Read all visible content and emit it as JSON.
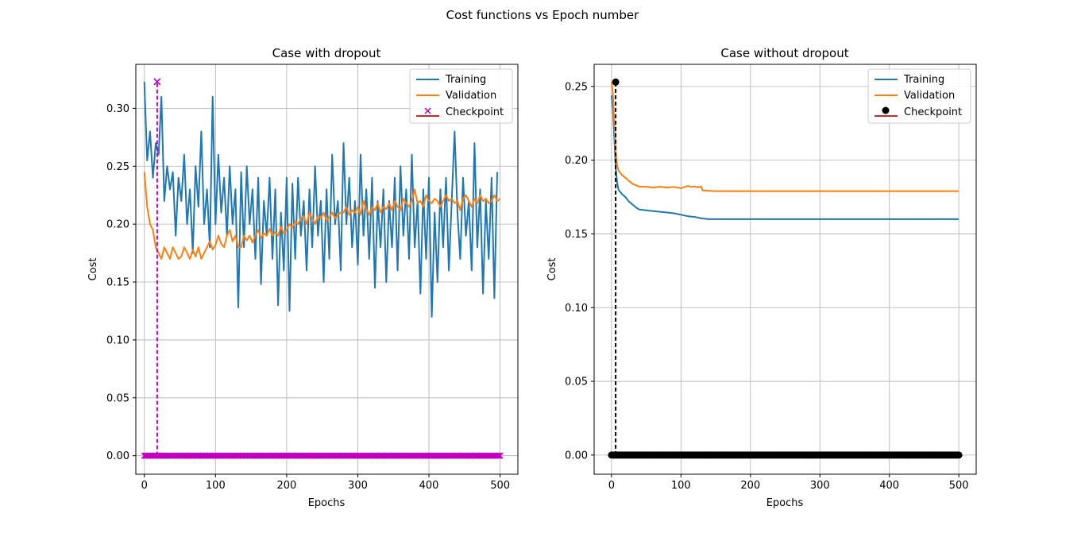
{
  "figure": {
    "title": "Cost functions vs Epoch number"
  },
  "colors": {
    "training": "#1f77b4",
    "validation": "#ff7f0e",
    "checkpoint_dropout": "#bf00bf",
    "checkpoint_nodropout": "#000000",
    "grid": "#b0b0b0"
  },
  "chart_data": [
    {
      "type": "line",
      "title": "Case with dropout",
      "xlabel": "Epochs",
      "ylabel": "Cost",
      "xlim": [
        -12,
        525
      ],
      "ylim": [
        -0.016,
        0.338
      ],
      "xticks": [
        0,
        100,
        200,
        300,
        400,
        500
      ],
      "yticks": [
        0.0,
        0.05,
        0.1,
        0.15,
        0.2,
        0.25,
        0.3
      ],
      "grid": true,
      "legend": {
        "placement": "top-right",
        "entries": [
          "Training",
          "Validation",
          "Checkpoint"
        ]
      },
      "checkpoint": {
        "epoch": 18,
        "value": 0.323,
        "marker": "x"
      },
      "series": [
        {
          "name": "Training",
          "x_start": 0,
          "x_step": 4,
          "values": [
            0.323,
            0.255,
            0.28,
            0.24,
            0.27,
            0.26,
            0.31,
            0.22,
            0.25,
            0.23,
            0.245,
            0.19,
            0.24,
            0.22,
            0.26,
            0.2,
            0.23,
            0.175,
            0.25,
            0.215,
            0.28,
            0.2,
            0.23,
            0.18,
            0.31,
            0.2,
            0.26,
            0.21,
            0.24,
            0.19,
            0.25,
            0.2,
            0.23,
            0.128,
            0.245,
            0.18,
            0.25,
            0.2,
            0.23,
            0.17,
            0.24,
            0.148,
            0.22,
            0.19,
            0.24,
            0.17,
            0.23,
            0.13,
            0.21,
            0.16,
            0.24,
            0.125,
            0.235,
            0.17,
            0.24,
            0.19,
            0.22,
            0.16,
            0.23,
            0.18,
            0.25,
            0.19,
            0.22,
            0.15,
            0.23,
            0.17,
            0.26,
            0.2,
            0.22,
            0.16,
            0.27,
            0.2,
            0.24,
            0.18,
            0.22,
            0.165,
            0.26,
            0.19,
            0.23,
            0.17,
            0.24,
            0.145,
            0.22,
            0.18,
            0.23,
            0.15,
            0.22,
            0.18,
            0.24,
            0.16,
            0.25,
            0.19,
            0.23,
            0.17,
            0.26,
            0.18,
            0.22,
            0.14,
            0.23,
            0.17,
            0.24,
            0.12,
            0.21,
            0.15,
            0.23,
            0.18,
            0.24,
            0.16,
            0.22,
            0.28,
            0.21,
            0.17,
            0.24,
            0.19,
            0.22,
            0.16,
            0.27,
            0.18,
            0.23,
            0.14,
            0.22,
            0.17,
            0.24,
            0.136,
            0.245
          ]
        },
        {
          "name": "Validation",
          "x_start": 0,
          "x_step": 4,
          "values": [
            0.245,
            0.215,
            0.2,
            0.195,
            0.18,
            0.175,
            0.17,
            0.18,
            0.175,
            0.17,
            0.18,
            0.175,
            0.17,
            0.172,
            0.18,
            0.175,
            0.17,
            0.178,
            0.172,
            0.18,
            0.17,
            0.175,
            0.18,
            0.185,
            0.178,
            0.182,
            0.19,
            0.183,
            0.18,
            0.19,
            0.195,
            0.185,
            0.19,
            0.18,
            0.18,
            0.19,
            0.186,
            0.19,
            0.184,
            0.19,
            0.195,
            0.188,
            0.192,
            0.19,
            0.196,
            0.19,
            0.193,
            0.19,
            0.198,
            0.192,
            0.195,
            0.2,
            0.197,
            0.202,
            0.2,
            0.205,
            0.207,
            0.2,
            0.21,
            0.205,
            0.2,
            0.207,
            0.205,
            0.21,
            0.203,
            0.206,
            0.21,
            0.205,
            0.208,
            0.21,
            0.21,
            0.215,
            0.208,
            0.212,
            0.21,
            0.215,
            0.208,
            0.22,
            0.213,
            0.208,
            0.215,
            0.212,
            0.218,
            0.21,
            0.215,
            0.213,
            0.218,
            0.212,
            0.22,
            0.215,
            0.212,
            0.222,
            0.218,
            0.215,
            0.22,
            0.23,
            0.218,
            0.22,
            0.215,
            0.225,
            0.22,
            0.218,
            0.222,
            0.22,
            0.215,
            0.22,
            0.225,
            0.22,
            0.222,
            0.218,
            0.22,
            0.212,
            0.222,
            0.225,
            0.22,
            0.215,
            0.222,
            0.218,
            0.225,
            0.22,
            0.222,
            0.218,
            0.22,
            0.225,
            0.22,
            0.222
          ]
        }
      ]
    },
    {
      "type": "line",
      "title": "Case without dropout",
      "xlabel": "Epochs",
      "ylabel": "Cost",
      "xlim": [
        -25,
        525
      ],
      "ylim": [
        -0.013,
        0.265
      ],
      "xticks": [
        0,
        100,
        200,
        300,
        400,
        500
      ],
      "yticks": [
        0.0,
        0.05,
        0.1,
        0.15,
        0.2,
        0.25
      ],
      "grid": true,
      "legend": {
        "placement": "top-right",
        "entries": [
          "Training",
          "Validation",
          "Checkpoint"
        ]
      },
      "checkpoint": {
        "epoch": 6,
        "value": 0.253,
        "marker": "o"
      },
      "series": [
        {
          "name": "Training",
          "x": [
            0,
            2,
            4,
            6,
            8,
            10,
            15,
            20,
            25,
            30,
            35,
            40,
            50,
            60,
            70,
            80,
            90,
            100,
            110,
            120,
            130,
            140,
            160,
            200,
            300,
            400,
            500
          ],
          "values": [
            0.244,
            0.235,
            0.215,
            0.195,
            0.185,
            0.18,
            0.177,
            0.175,
            0.172,
            0.17,
            0.168,
            0.1665,
            0.166,
            0.1655,
            0.165,
            0.1645,
            0.164,
            0.163,
            0.162,
            0.1615,
            0.1605,
            0.16,
            0.16,
            0.16,
            0.16,
            0.16,
            0.16
          ]
        },
        {
          "name": "Validation",
          "x": [
            0,
            2,
            4,
            6,
            8,
            10,
            15,
            20,
            25,
            30,
            35,
            40,
            50,
            60,
            70,
            80,
            90,
            100,
            110,
            115,
            120,
            125,
            129,
            131,
            150,
            200,
            300,
            400,
            500
          ],
          "values": [
            0.253,
            0.245,
            0.225,
            0.205,
            0.197,
            0.193,
            0.19,
            0.188,
            0.186,
            0.184,
            0.183,
            0.182,
            0.182,
            0.1815,
            0.182,
            0.1815,
            0.1818,
            0.181,
            0.1825,
            0.1818,
            0.1822,
            0.1815,
            0.1822,
            0.1795,
            0.179,
            0.179,
            0.179,
            0.179,
            0.179
          ]
        }
      ]
    }
  ]
}
